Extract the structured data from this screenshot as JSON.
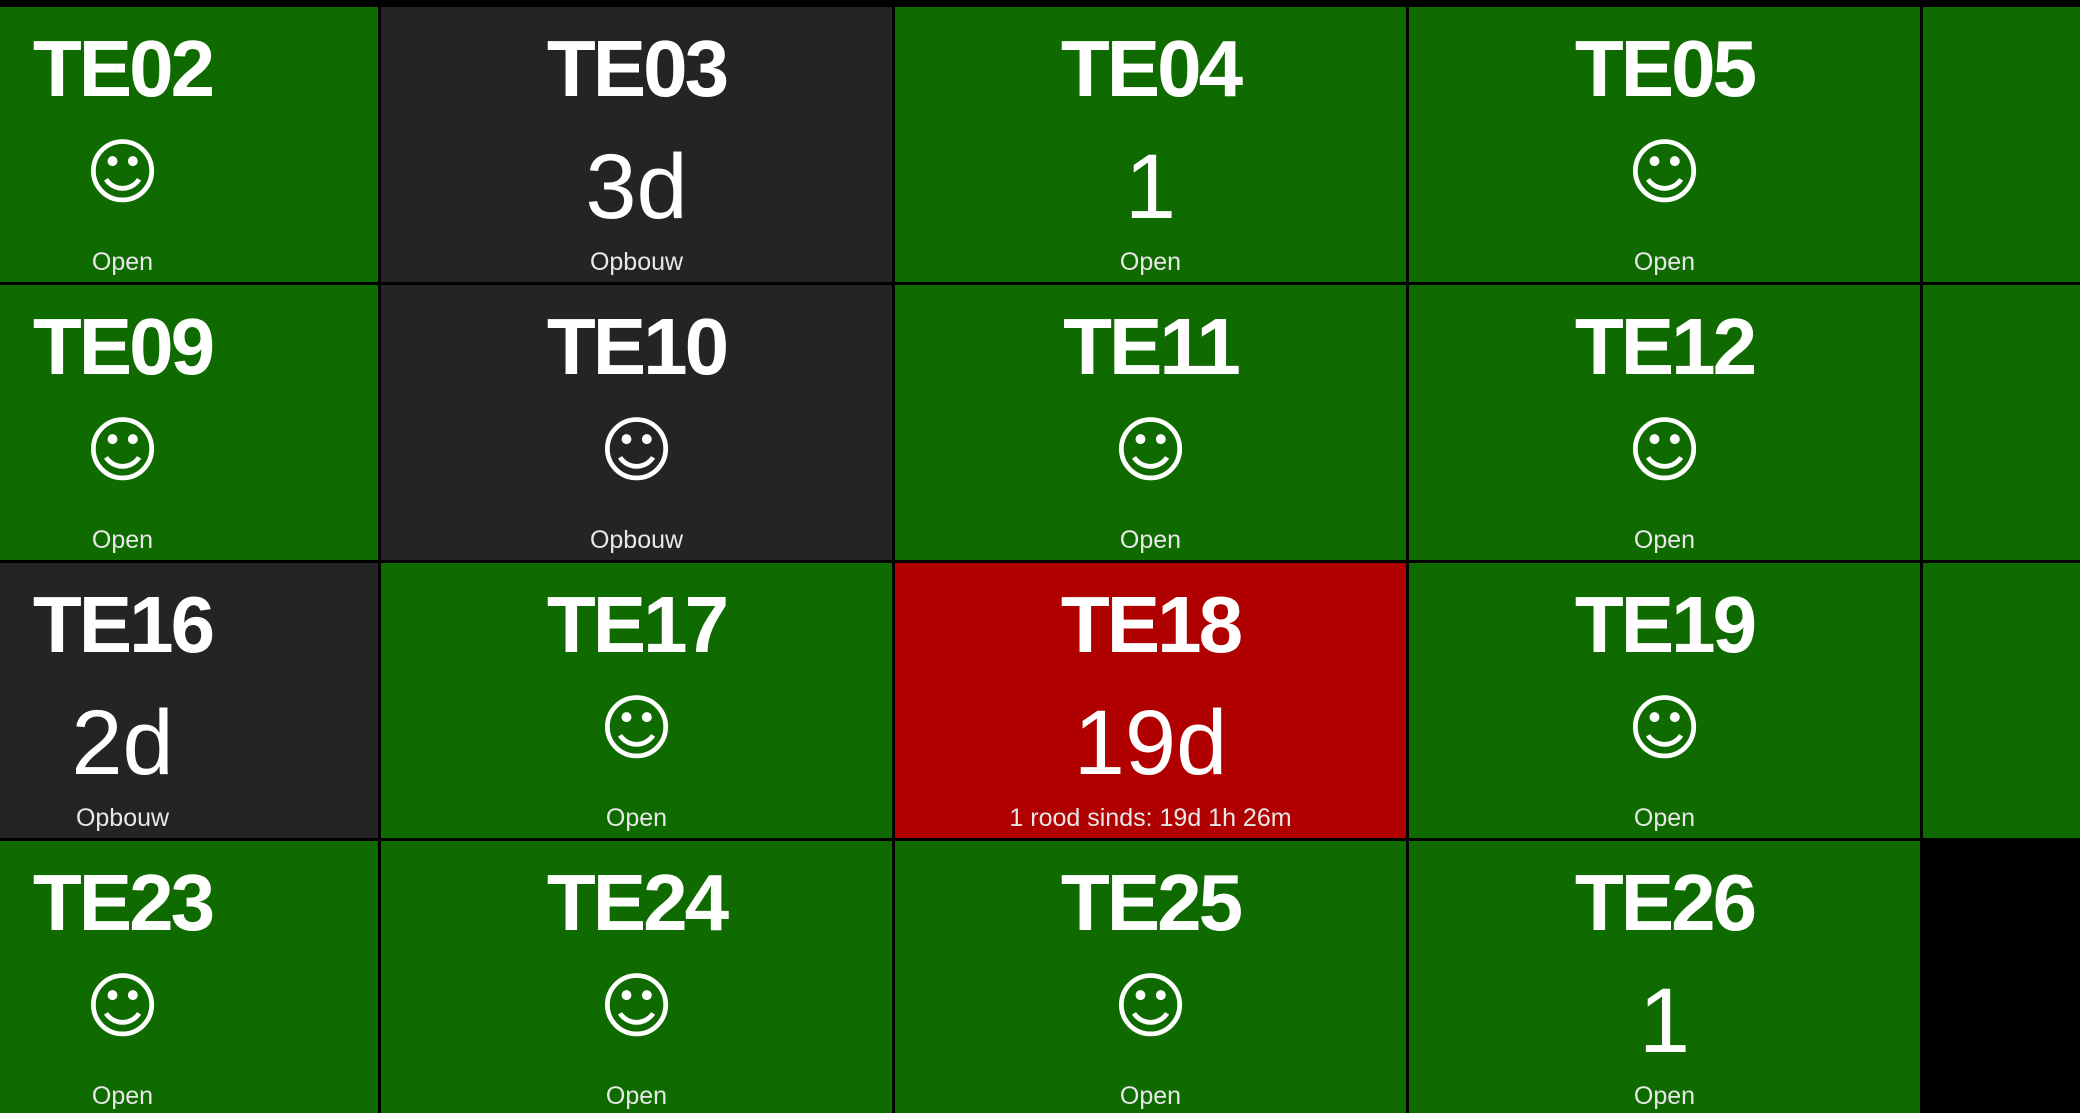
{
  "rows": [
    [
      {
        "name": "TE02",
        "value": "☺",
        "status": "Open",
        "color": "#0f6b00"
      },
      {
        "name": "TE03",
        "value": "3d",
        "status": "Opbouw",
        "color": "#242424"
      },
      {
        "name": "TE04",
        "value": "1",
        "status": "Open",
        "color": "#0f6b00"
      },
      {
        "name": "TE05",
        "value": "☺",
        "status": "Open",
        "color": "#0f6b00"
      }
    ],
    [
      {
        "name": "TE09",
        "value": "☺",
        "status": "Open",
        "color": "#0f6b00"
      },
      {
        "name": "TE10",
        "value": "☺",
        "status": "Opbouw",
        "color": "#242424"
      },
      {
        "name": "TE11",
        "value": "☺",
        "status": "Open",
        "color": "#0f6b00"
      },
      {
        "name": "TE12",
        "value": "☺",
        "status": "Open",
        "color": "#0f6b00"
      }
    ],
    [
      {
        "name": "TE16",
        "value": "2d",
        "status": "Opbouw",
        "color": "#242424"
      },
      {
        "name": "TE17",
        "value": "☺",
        "status": "Open",
        "color": "#0f6b00"
      },
      {
        "name": "TE18",
        "value": "19d",
        "status": "1 rood sinds: 19d 1h 26m",
        "color": "#b00000"
      },
      {
        "name": "TE19",
        "value": "☺",
        "status": "Open",
        "color": "#0f6b00"
      }
    ],
    [
      {
        "name": "TE23",
        "value": "☺",
        "status": "Open",
        "color": "#0f6b00"
      },
      {
        "name": "TE24",
        "value": "☺",
        "status": "Open",
        "color": "#0f6b00"
      },
      {
        "name": "TE25",
        "value": "☺",
        "status": "Open",
        "color": "#0f6b00"
      },
      {
        "name": "TE26",
        "value": "1",
        "status": "Open",
        "color": "#0f6b00"
      }
    ]
  ]
}
